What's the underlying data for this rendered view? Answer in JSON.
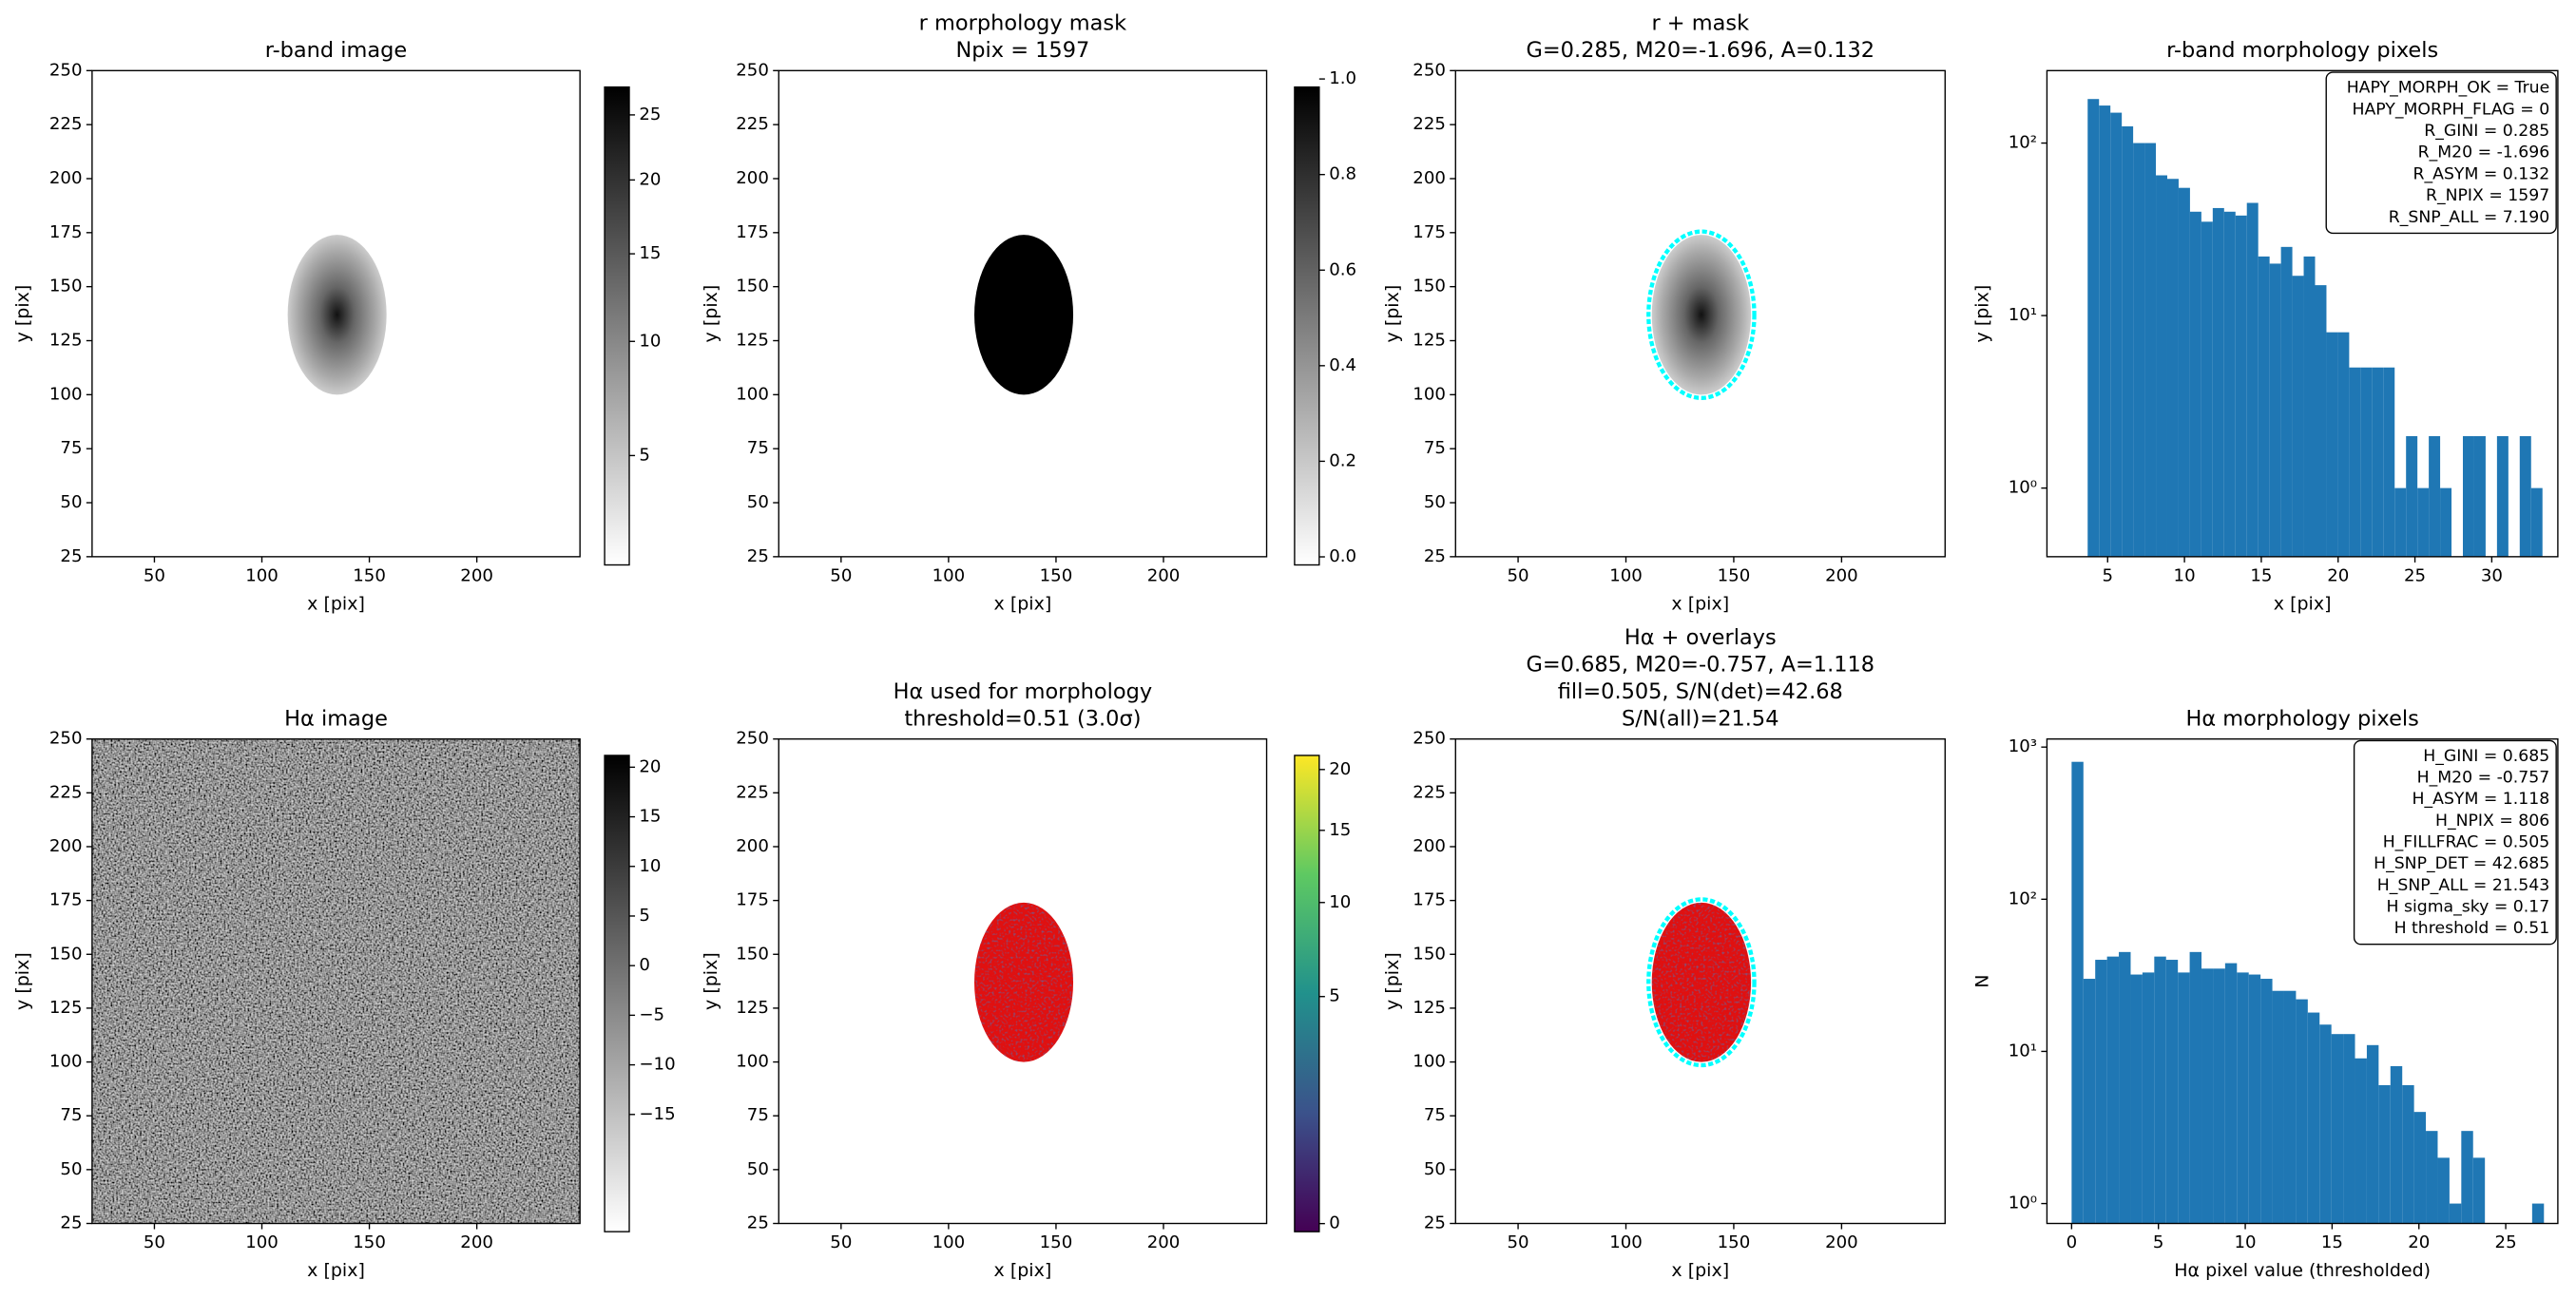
{
  "chart_data": [
    {
      "type": "image",
      "title": "r-band image",
      "xlabel": "x [pix]",
      "ylabel": "y [pix]",
      "cmap": "gray_r",
      "xlim": [
        21,
        248
      ],
      "ylim": [
        25,
        250
      ],
      "xticks": [
        50,
        100,
        150,
        200
      ],
      "yticks": [
        25,
        50,
        75,
        100,
        125,
        150,
        175,
        200,
        225,
        250
      ],
      "colorbar": {
        "clim": [
          2,
          28
        ],
        "scale": "sqrt",
        "ticks": [
          5,
          10,
          15,
          20,
          25
        ]
      }
    },
    {
      "type": "image",
      "title": [
        "r morphology mask",
        "Npix = 1597"
      ],
      "xlabel": "x [pix]",
      "ylabel": "y [pix]",
      "cmap": "binary",
      "xlim": [
        21,
        248
      ],
      "ylim": [
        25,
        250
      ],
      "xticks": [
        50,
        100,
        150,
        200
      ],
      "yticks": [
        25,
        50,
        75,
        100,
        125,
        150,
        175,
        200,
        225,
        250
      ],
      "colorbar": {
        "clim": [
          0,
          1
        ],
        "scale": "linear",
        "ticks": [
          {
            "value": 0,
            "label": "0.0"
          },
          0.2,
          0.4,
          0.6,
          0.8,
          {
            "value": 1,
            "label": "1.0"
          }
        ]
      }
    },
    {
      "type": "image",
      "title": [
        "r + mask",
        "G=0.285, M20=-1.696, A=0.132"
      ],
      "xlabel": "x [pix]",
      "ylabel": "y [pix]",
      "cmap": "gray_r",
      "xlim": [
        21,
        248
      ],
      "ylim": [
        25,
        250
      ],
      "xticks": [
        50,
        100,
        150,
        200
      ],
      "yticks": [
        25,
        50,
        75,
        100,
        125,
        150,
        175,
        200,
        225,
        250
      ]
    },
    {
      "type": "histogram",
      "title": "r-band morphology pixels",
      "xlabel": "x [pix]",
      "ylabel": "y [pix]",
      "color": "#1f77b4",
      "log_y": true,
      "bins": [
        3.7,
        4.44,
        5.18,
        5.92,
        6.66,
        7.4,
        8.14,
        8.88,
        9.62,
        10.36,
        11.1,
        11.84,
        12.58,
        13.32,
        14.06,
        14.8,
        15.54,
        16.28,
        17.02,
        17.76,
        18.5,
        19.24,
        19.98,
        20.72,
        21.46,
        22.2,
        22.94,
        23.68,
        24.42,
        25.16,
        25.9,
        26.64,
        27.38,
        28.12,
        28.86,
        29.6,
        30.34,
        31.08,
        31.82,
        32.56,
        33.3
      ],
      "counts": [
        180,
        165,
        150,
        125,
        100,
        100,
        65,
        62,
        55,
        40,
        35,
        42,
        40,
        38,
        45,
        22,
        20,
        25,
        17,
        22,
        15,
        8,
        8,
        5,
        5,
        5,
        5,
        1,
        2,
        1,
        2,
        1,
        0,
        2,
        2,
        0,
        2,
        0,
        2,
        1
      ],
      "xlim": [
        1.05,
        34.3
      ],
      "ylim": [
        0.4,
        263
      ],
      "xticks": [
        5,
        10,
        15,
        20,
        25,
        30
      ],
      "yticks": [
        {
          "value": 1,
          "label": "10⁰"
        },
        {
          "value": 10,
          "label": "10¹"
        },
        {
          "value": 100,
          "label": "10²"
        }
      ],
      "annotation": [
        "HAPY_MORPH_OK = True",
        "HAPY_MORPH_FLAG = 0",
        "R_GINI = 0.285",
        "R_M20 = -1.696",
        "R_ASYM = 0.132",
        "R_NPIX = 1597",
        "R_SNP_ALL = 7.190"
      ]
    },
    {
      "type": "image",
      "title": "Hα image",
      "xlabel": "x [pix]",
      "ylabel": "y [pix]",
      "cmap": "gray_r",
      "xlim": [
        21,
        248
      ],
      "ylim": [
        25,
        250
      ],
      "xticks": [
        50,
        100,
        150,
        200
      ],
      "yticks": [
        25,
        50,
        75,
        100,
        125,
        150,
        175,
        200,
        225,
        250
      ],
      "colorbar": {
        "clim": [
          -26,
          22
        ],
        "scale": "linear",
        "ticks": [
          20,
          15,
          10,
          5,
          0,
          {
            "value": -5,
            "label": "−5"
          },
          {
            "value": -10,
            "label": "−10"
          },
          {
            "value": -15,
            "label": "−15"
          }
        ]
      }
    },
    {
      "type": "image",
      "title": [
        "Hα used for morphology",
        "threshold=0.51 (3.0σ)"
      ],
      "xlabel": "x [pix]",
      "ylabel": "y [pix]",
      "cmap": "viridis",
      "xlim": [
        21,
        248
      ],
      "ylim": [
        25,
        250
      ],
      "xticks": [
        50,
        100,
        150,
        200
      ],
      "yticks": [
        25,
        50,
        75,
        100,
        125,
        150,
        175,
        200,
        225,
        250
      ],
      "colorbar": {
        "clim": [
          0,
          22
        ],
        "scale": "sqrt",
        "ticks": [
          0,
          5,
          10,
          15,
          20
        ]
      }
    },
    {
      "type": "image",
      "title": [
        "Hα + overlays",
        "G=0.685, M20=-0.757, A=1.118",
        "fill=0.505, S/N(det)=42.68",
        "S/N(all)=21.54"
      ],
      "xlabel": "x [pix]",
      "ylabel": "y [pix]",
      "cmap": "gray_r",
      "xlim": [
        21,
        248
      ],
      "ylim": [
        25,
        250
      ],
      "xticks": [
        50,
        100,
        150,
        200
      ],
      "yticks": [
        25,
        50,
        75,
        100,
        125,
        150,
        175,
        200,
        225,
        250
      ]
    },
    {
      "type": "histogram",
      "title": "Hα morphology pixels",
      "xlabel": "Hα pixel value (thresholded)",
      "ylabel": "N",
      "color": "#1f77b4",
      "log_y": true,
      "bins": [
        0,
        0.68,
        1.36,
        2.04,
        2.72,
        3.4,
        4.08,
        4.76,
        5.44,
        6.12,
        6.8,
        7.48,
        8.16,
        8.84,
        9.52,
        10.2,
        10.88,
        11.56,
        12.24,
        12.92,
        13.6,
        14.28,
        14.96,
        15.64,
        16.32,
        17.0,
        17.68,
        18.36,
        19.04,
        19.72,
        20.4,
        21.08,
        21.76,
        22.44,
        23.12,
        23.8,
        24.48,
        25.16,
        25.84,
        26.52,
        27.2
      ],
      "counts": [
        800,
        30,
        40,
        42,
        45,
        32,
        33,
        42,
        40,
        33,
        45,
        35,
        35,
        38,
        33,
        32,
        30,
        25,
        25,
        22,
        18,
        15,
        13,
        13,
        9,
        11,
        6,
        8,
        6,
        4,
        3,
        2,
        1,
        3,
        2,
        0,
        0,
        0,
        0,
        1
      ],
      "xlim": [
        -1.42,
        28.0
      ],
      "ylim": [
        0.74,
        1130
      ],
      "xticks": [
        0,
        5,
        10,
        15,
        20,
        25
      ],
      "yticks": [
        {
          "value": 1,
          "label": "10⁰"
        },
        {
          "value": 10,
          "label": "10¹"
        },
        {
          "value": 100,
          "label": "10²"
        },
        {
          "value": 1000,
          "label": "10³"
        }
      ],
      "annotation": [
        "H_GINI = 0.685",
        "H_M20 = -0.757",
        "H_ASYM = 1.118",
        "H_NPIX = 806",
        "H_FILLFRAC = 0.505",
        "H_SNP_DET = 42.685",
        "H_SNP_ALL = 21.543",
        "H sigma_sky = 0.17",
        "H threshold = 0.51"
      ]
    }
  ]
}
